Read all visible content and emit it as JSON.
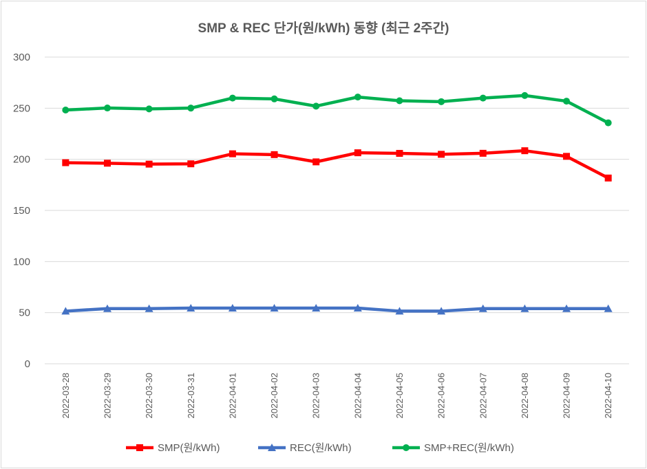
{
  "chart_data": {
    "type": "line",
    "title": "SMP & REC 단가(원/kWh) 동향 (최근 2주간)",
    "xlabel": "",
    "ylabel": "",
    "ylim": [
      0,
      300
    ],
    "yticks": [
      0,
      50,
      100,
      150,
      200,
      250,
      300
    ],
    "grid": true,
    "legend_position": "bottom",
    "categories": [
      "2022-03-28",
      "2022-03-29",
      "2022-03-30",
      "2022-03-31",
      "2022-04-01",
      "2022-04-02",
      "2022-04-03",
      "2022-04-04",
      "2022-04-05",
      "2022-04-06",
      "2022-04-07",
      "2022-04-08",
      "2022-04-09",
      "2022-04-10"
    ],
    "series": [
      {
        "name": "SMP(원/kWh)",
        "color": "#ff0000",
        "marker": "square",
        "values": [
          196.7,
          196.2,
          195.3,
          195.6,
          205.4,
          204.6,
          197.5,
          206.4,
          205.8,
          204.9,
          205.9,
          208.4,
          202.9,
          181.7
        ]
      },
      {
        "name": "REC(원/kWh)",
        "color": "#4472c4",
        "marker": "triangle",
        "values": [
          51.5,
          54.0,
          54.0,
          54.5,
          54.5,
          54.5,
          54.5,
          54.5,
          51.5,
          51.5,
          54.0,
          54.0,
          54.0,
          54.0
        ]
      },
      {
        "name": "SMP+REC(원/kWh)",
        "color": "#00b050",
        "marker": "circle",
        "values": [
          248.2,
          250.2,
          249.3,
          250.1,
          259.9,
          259.1,
          252.0,
          260.9,
          257.3,
          256.4,
          259.9,
          262.4,
          256.9,
          235.7
        ]
      }
    ]
  }
}
